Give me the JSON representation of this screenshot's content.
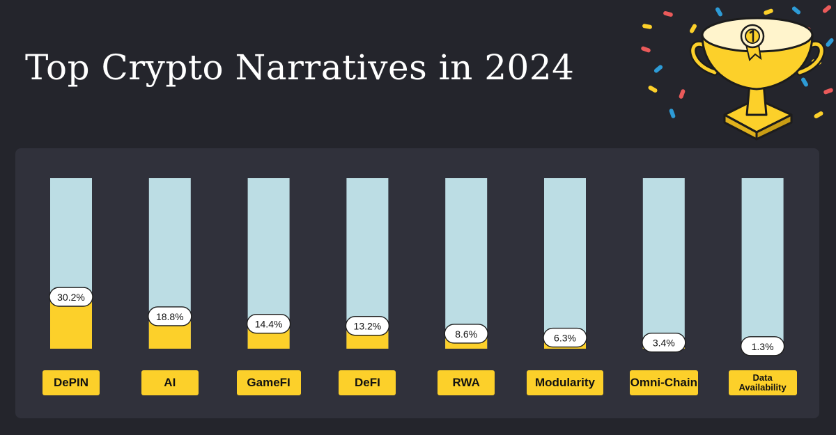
{
  "title": "Top Crypto Narratives in 2024",
  "colors": {
    "background": "#24252c",
    "panel": "#30313b",
    "track": "#bcdde4",
    "fill": "#fcd02a",
    "label_bg": "#ffffff",
    "text": "#111111"
  },
  "chart_data": {
    "type": "bar",
    "title": "Top Crypto Narratives in 2024",
    "xlabel": "",
    "ylabel": "",
    "ylim": [
      0,
      100
    ],
    "grid": false,
    "categories": [
      "DePIN",
      "AI",
      "GameFI",
      "DeFI",
      "RWA",
      "Modularity",
      "Omni-Chain",
      "Data\nAvailability"
    ],
    "values": [
      30.2,
      18.8,
      14.4,
      13.2,
      8.6,
      6.3,
      3.4,
      1.3
    ],
    "value_labels": [
      "30.2%",
      "18.8%",
      "14.4%",
      "13.2%",
      "8.6%",
      "6.3%",
      "3.4%",
      "1.3%"
    ]
  }
}
